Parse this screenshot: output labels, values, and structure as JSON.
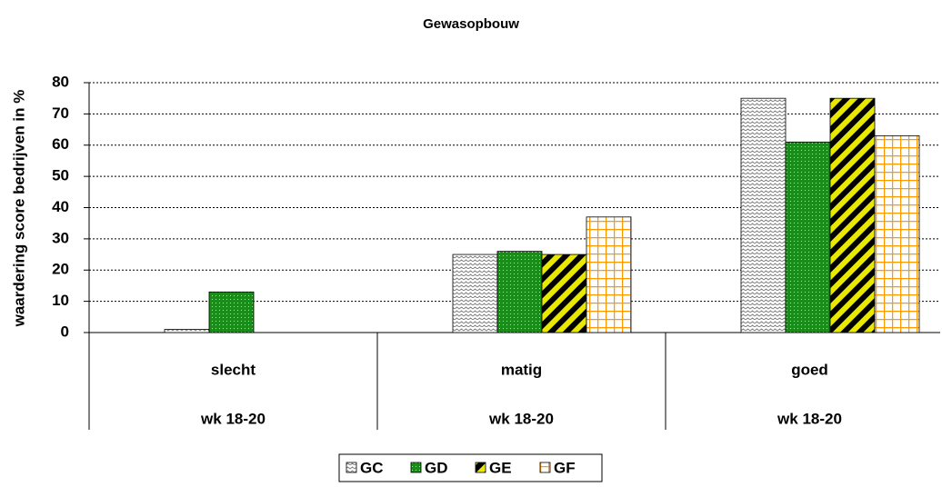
{
  "chart_data": {
    "type": "bar",
    "title": "Gewasopbouw",
    "y_label": "waardering score bedrijven in %",
    "categories": [
      "slecht",
      "matig",
      "goed"
    ],
    "group_labels": [
      "wk 18-20",
      "wk 18-20",
      "wk 18-20"
    ],
    "series": [
      {
        "name": "GC",
        "color": "#808080",
        "values": [
          1,
          25,
          75
        ]
      },
      {
        "name": "GD",
        "color": "#1a8c1a",
        "values": [
          13,
          26,
          61
        ]
      },
      {
        "name": "GE",
        "color": "#e8e800",
        "values": [
          0,
          25,
          75
        ]
      },
      {
        "name": "GF",
        "color": "#ff9900",
        "values": [
          0,
          37,
          63
        ]
      }
    ],
    "ylim": [
      0,
      80
    ],
    "yticks": [
      0,
      10,
      20,
      30,
      40,
      50,
      60,
      70,
      80
    ],
    "grid": true,
    "legend": "bottom"
  }
}
